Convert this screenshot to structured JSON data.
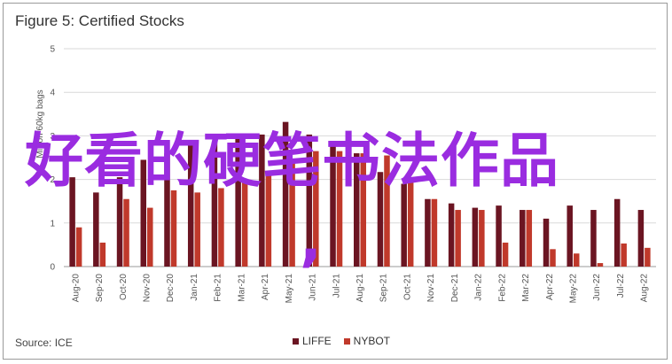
{
  "chart_data": {
    "type": "bar",
    "title": "Figure 5: Certified Stocks",
    "ylabel": "Million 60kg bags",
    "xlabel": "",
    "ylim": [
      0,
      5
    ],
    "yticks": [
      0,
      1,
      2,
      3,
      4,
      5
    ],
    "grid": true,
    "legend_position": "bottom",
    "source": "Source: ICE",
    "categories": [
      "Aug-20",
      "Sep-20",
      "Oct-20",
      "Nov-20",
      "Dec-20",
      "Jan-21",
      "Feb-21",
      "Mar-21",
      "Apr-21",
      "May-21",
      "Jun-21",
      "Jul-21",
      "Aug-21",
      "Sep-21",
      "Oct-21",
      "Nov-21",
      "Dec-21",
      "Jan-22",
      "Feb-22",
      "Mar-22",
      "Apr-22",
      "May-22",
      "Jun-22",
      "Jul-22",
      "Aug-22"
    ],
    "series": [
      {
        "name": "LIFFE",
        "color": "#6b1522",
        "values": [
          2.05,
          1.7,
          2.05,
          2.45,
          2.6,
          2.78,
          2.85,
          2.98,
          3.03,
          3.32,
          3.03,
          2.85,
          2.6,
          2.17,
          1.9,
          1.55,
          1.45,
          1.35,
          1.4,
          1.3,
          1.1,
          1.4,
          1.3,
          1.55,
          1.3
        ]
      },
      {
        "name": "NYBOT",
        "color": "#c0392b",
        "values": [
          0.9,
          0.55,
          1.55,
          1.35,
          1.75,
          1.7,
          1.8,
          1.95,
          2.1,
          2.4,
          2.65,
          2.65,
          2.6,
          2.55,
          2.0,
          1.55,
          1.3,
          1.3,
          0.55,
          1.3,
          0.4,
          0.3,
          0.08,
          0.53,
          0.43
        ]
      }
    ]
  },
  "overlay": {
    "text": "好看的硬笔书法作品",
    "comma": ","
  }
}
